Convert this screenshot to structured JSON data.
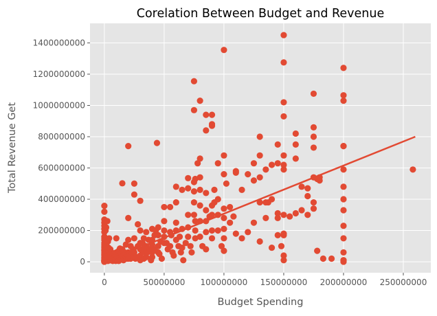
{
  "chart_data": {
    "type": "scatter",
    "title": "Corelation Between Budget and Revenue",
    "xlabel": "Budget Spending",
    "ylabel": "Total  Revenue Get",
    "xlim": [
      -12000000,
      273000000
    ],
    "ylim": [
      -70000000,
      1525000000
    ],
    "x_ticks": [
      0,
      50000000,
      100000000,
      150000000,
      200000000,
      250000000
    ],
    "x_tick_labels": [
      "0",
      "50000000",
      "100000000",
      "150000000",
      "200000000",
      "250000000"
    ],
    "y_ticks": [
      0,
      200000000,
      400000000,
      600000000,
      800000000,
      1000000000,
      1200000000,
      1400000000
    ],
    "y_tick_labels": [
      "0",
      "200000000",
      "400000000",
      "600000000",
      "800000000",
      "1000000000",
      "1200000000",
      "1400000000"
    ],
    "grid": true,
    "style": "ggplot",
    "colors": {
      "points": "#e24a33",
      "line": "#e24a33",
      "background": "#e5e5e5",
      "grid": "#ffffff"
    },
    "regression_line": {
      "x": [
        0,
        260000000
      ],
      "y": [
        0,
        800000000
      ]
    },
    "series": [
      {
        "x": [
          0,
          0,
          0,
          0,
          0,
          0,
          0,
          0,
          0,
          0,
          0,
          0,
          0,
          0,
          0,
          0,
          0,
          0,
          0,
          0,
          0,
          0,
          0,
          0,
          0,
          0,
          0,
          0,
          0,
          0,
          0,
          1000000,
          1000000,
          1500000,
          1500000,
          2000000,
          2000000,
          2500000,
          2500000,
          3000000,
          3000000,
          3500000,
          3500000,
          4000000,
          4000000,
          4500000,
          4500000,
          5000000,
          5000000,
          5000000,
          5500000,
          6000000,
          6000000,
          6500000,
          7000000,
          7000000,
          7500000,
          8000000,
          8000000,
          8500000,
          9000000,
          9000000,
          9500000,
          10000000,
          10000000,
          10000000,
          11000000,
          11000000,
          12000000,
          12000000,
          12000000,
          13000000,
          13000000,
          14000000,
          14000000,
          15000000,
          15000000,
          15000000,
          16000000,
          16000000,
          17000000,
          17000000,
          18000000,
          18000000,
          19000000,
          20000000,
          20000000,
          20000000,
          20000000,
          20000000,
          21000000,
          22000000,
          22000000,
          23000000,
          24000000,
          24000000,
          25000000,
          25000000,
          25000000,
          25000000,
          26000000,
          27000000,
          28000000,
          28000000,
          30000000,
          30000000,
          30000000,
          30000000,
          30000000,
          30000000,
          32000000,
          32000000,
          33000000,
          33000000,
          34000000,
          35000000,
          35000000,
          35000000,
          36000000,
          37000000,
          38000000,
          39000000,
          40000000,
          40000000,
          40000000,
          40000000,
          40000000,
          42000000,
          42000000,
          43000000,
          44000000,
          45000000,
          45000000,
          45000000,
          45000000,
          46000000,
          47000000,
          48000000,
          50000000,
          50000000,
          50000000,
          50000000,
          50000000,
          52000000,
          53000000,
          55000000,
          55000000,
          55000000,
          56000000,
          57000000,
          58000000,
          60000000,
          60000000,
          60000000,
          60000000,
          60000000,
          62000000,
          63000000,
          64000000,
          65000000,
          65000000,
          65000000,
          66000000,
          68000000,
          70000000,
          70000000,
          70000000,
          70000000,
          70000000,
          72000000,
          73000000,
          75000000,
          75000000,
          75000000,
          75000000,
          75000000,
          75000000,
          76000000,
          76000000,
          76000000,
          76000000,
          78000000,
          80000000,
          80000000,
          80000000,
          80000000,
          80000000,
          80000000,
          80000000,
          82000000,
          85000000,
          85000000,
          85000000,
          85000000,
          85000000,
          85000000,
          85000000,
          88000000,
          90000000,
          90000000,
          90000000,
          90000000,
          90000000,
          90000000,
          90000000,
          92000000,
          92000000,
          95000000,
          95000000,
          95000000,
          95000000,
          98000000,
          100000000,
          100000000,
          100000000,
          100000000,
          100000000,
          100000000,
          100000000,
          100000000,
          102000000,
          105000000,
          105000000,
          108000000,
          110000000,
          110000000,
          110000000,
          115000000,
          115000000,
          120000000,
          120000000,
          125000000,
          125000000,
          125000000,
          130000000,
          130000000,
          130000000,
          130000000,
          130000000,
          135000000,
          135000000,
          135000000,
          137000000,
          140000000,
          140000000,
          140000000,
          145000000,
          145000000,
          145000000,
          145000000,
          145000000,
          148000000,
          150000000,
          150000000,
          150000000,
          150000000,
          150000000,
          150000000,
          150000000,
          150000000,
          150000000,
          150000000,
          150000000,
          150000000,
          155000000,
          160000000,
          160000000,
          160000000,
          160000000,
          165000000,
          165000000,
          170000000,
          170000000,
          170000000,
          175000000,
          175000000,
          175000000,
          175000000,
          175000000,
          175000000,
          175000000,
          178000000,
          178000000,
          180000000,
          180000000,
          183000000,
          190000000,
          200000000,
          200000000,
          200000000,
          200000000,
          200000000,
          200000000,
          200000000,
          200000000,
          200000000,
          200000000,
          200000000,
          200000000,
          200000000,
          200000000,
          200000000,
          258000000
        ],
        "y": [
          358000000,
          320000000,
          270000000,
          250000000,
          230000000,
          190000000,
          160000000,
          140000000,
          120000000,
          100000000,
          90000000,
          80000000,
          70000000,
          60000000,
          50000000,
          40000000,
          30000000,
          20000000,
          10000000,
          5000000,
          0,
          210000000,
          150000000,
          110000000,
          75000000,
          45000000,
          25000000,
          12000000,
          8000000,
          3000000,
          1000000,
          20000000,
          200000000,
          60000000,
          220000000,
          10000000,
          100000000,
          40000000,
          260000000,
          5000000,
          130000000,
          70000000,
          90000000,
          30000000,
          150000000,
          10000000,
          20000000,
          50000000,
          80000000,
          10000000,
          35000000,
          15000000,
          60000000,
          25000000,
          5000000,
          45000000,
          10000000,
          30000000,
          20000000,
          55000000,
          10000000,
          40000000,
          5000000,
          60000000,
          150000000,
          20000000,
          10000000,
          30000000,
          25000000,
          70000000,
          5000000,
          40000000,
          85000000,
          15000000,
          55000000,
          502000000,
          35000000,
          80000000,
          20000000,
          10000000,
          60000000,
          45000000,
          110000000,
          30000000,
          20000000,
          740000000,
          280000000,
          60000000,
          20000000,
          140000000,
          40000000,
          100000000,
          20000000,
          60000000,
          80000000,
          30000000,
          500000000,
          430000000,
          150000000,
          60000000,
          20000000,
          30000000,
          100000000,
          240000000,
          390000000,
          200000000,
          120000000,
          80000000,
          40000000,
          10000000,
          120000000,
          60000000,
          150000000,
          20000000,
          80000000,
          190000000,
          100000000,
          30000000,
          60000000,
          140000000,
          80000000,
          10000000,
          210000000,
          110000000,
          60000000,
          30000000,
          140000000,
          170000000,
          80000000,
          200000000,
          760000000,
          220000000,
          170000000,
          100000000,
          60000000,
          50000000,
          130000000,
          20000000,
          350000000,
          260000000,
          200000000,
          160000000,
          120000000,
          120000000,
          80000000,
          350000000,
          190000000,
          100000000,
          170000000,
          60000000,
          40000000,
          480000000,
          380000000,
          250000000,
          200000000,
          140000000,
          100000000,
          160000000,
          60000000,
          460000000,
          210000000,
          90000000,
          10000000,
          120000000,
          535000000,
          470000000,
          300000000,
          220000000,
          160000000,
          100000000,
          60000000,
          1155000000,
          970000000,
          510000000,
          450000000,
          380000000,
          300000000,
          530000000,
          260000000,
          200000000,
          150000000,
          630000000,
          1030000000,
          660000000,
          540000000,
          460000000,
          360000000,
          260000000,
          160000000,
          100000000,
          940000000,
          840000000,
          440000000,
          330000000,
          260000000,
          190000000,
          80000000,
          290000000,
          880000000,
          940000000,
          870000000,
          360000000,
          300000000,
          200000000,
          150000000,
          460000000,
          380000000,
          630000000,
          400000000,
          300000000,
          200000000,
          100000000,
          1355000000,
          680000000,
          560000000,
          340000000,
          280000000,
          210000000,
          150000000,
          70000000,
          500000000,
          350000000,
          250000000,
          290000000,
          570000000,
          580000000,
          180000000,
          460000000,
          150000000,
          560000000,
          190000000,
          630000000,
          520000000,
          250000000,
          800000000,
          680000000,
          540000000,
          380000000,
          130000000,
          590000000,
          380000000,
          280000000,
          380000000,
          620000000,
          400000000,
          90000000,
          750000000,
          630000000,
          310000000,
          280000000,
          170000000,
          100000000,
          1450000000,
          1275000000,
          1020000000,
          930000000,
          680000000,
          620000000,
          590000000,
          300000000,
          180000000,
          170000000,
          40000000,
          10000000,
          290000000,
          820000000,
          750000000,
          660000000,
          310000000,
          480000000,
          330000000,
          470000000,
          420000000,
          300000000,
          1075000000,
          860000000,
          800000000,
          730000000,
          540000000,
          380000000,
          340000000,
          530000000,
          70000000,
          520000000,
          540000000,
          20000000,
          20000000,
          1240000000,
          1065000000,
          1030000000,
          740000000,
          590000000,
          480000000,
          400000000,
          330000000,
          230000000,
          150000000,
          60000000,
          10000000,
          0,
          740000000,
          10000000,
          590000000
        ]
      }
    ]
  }
}
